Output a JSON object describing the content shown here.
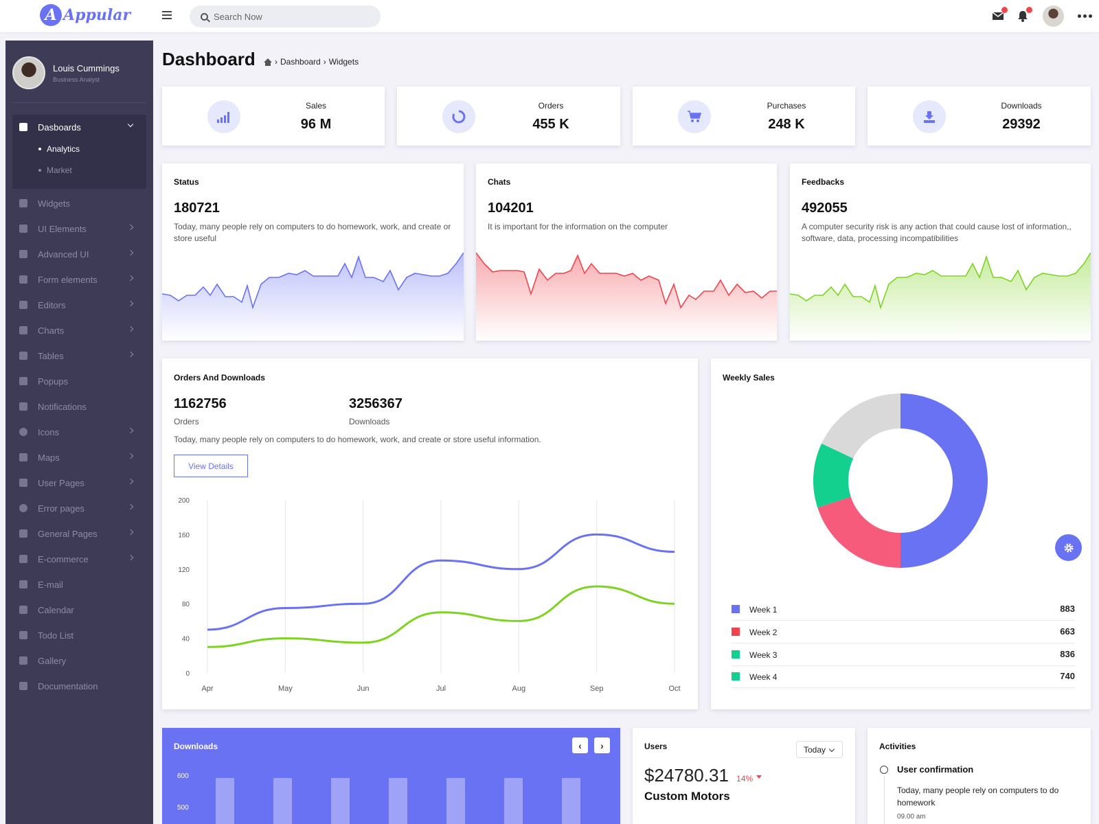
{
  "app": {
    "logo_letter": "A",
    "name": "Appular",
    "accent": "#6a72f4"
  },
  "search": {
    "placeholder": "Search Now"
  },
  "sidebar": {
    "user": {
      "name": "Louis Cummings",
      "role": "Business Analyst"
    },
    "dashboards": {
      "label": "Dasboards",
      "children": [
        "Analytics",
        "Market"
      ],
      "active_child": "Analytics"
    },
    "items": [
      "Widgets",
      "UI Elements",
      "Advanced UI",
      "Form elements",
      "Editors",
      "Charts",
      "Tables",
      "Popups",
      "Notifications",
      "Icons",
      "Maps",
      "User Pages",
      "Error pages",
      "General Pages",
      "E-commerce",
      "E-mail",
      "Calendar",
      "Todo List",
      "Gallery",
      "Documentation"
    ]
  },
  "page": {
    "title": "Dashboard",
    "breadcrumb": [
      "Dashboard",
      "Widgets"
    ]
  },
  "stats": [
    {
      "label": "Sales",
      "value": "96 M",
      "icon": "signal-bars-icon"
    },
    {
      "label": "Orders",
      "value": "455 K",
      "icon": "circle-notch-icon"
    },
    {
      "label": "Purchases",
      "value": "248 K",
      "icon": "cart-icon"
    },
    {
      "label": "Downloads",
      "value": "29392",
      "icon": "download-icon"
    }
  ],
  "sparks": [
    {
      "title": "Status",
      "value": "180721",
      "desc": "Today, many people rely on computers to do homework, work, and create or store useful",
      "color": "#6a72f4"
    },
    {
      "title": "Chats",
      "value": "104201",
      "desc": "It is important for the information on the computer",
      "color": "#f0444c"
    },
    {
      "title": "Feedbacks",
      "value": "492055",
      "desc": "A computer security risk is any action that could cause lost of information,, software, data, processing incompatibilities",
      "color": "#7ed321"
    }
  ],
  "orders_downloads": {
    "title": "Orders And Downloads",
    "orders_value": "1162756",
    "orders_label": "Orders",
    "downloads_value": "3256367",
    "downloads_label": "Downloads",
    "desc": "Today, many people rely on computers to do homework, work, and create or store useful information.",
    "button": "View Details"
  },
  "weekly_sales": {
    "title": "Weekly Sales",
    "legend": [
      {
        "label": "Week 1",
        "value": "883",
        "color": "#6a72f4"
      },
      {
        "label": "Week 2",
        "value": "663",
        "color": "#f75b7b"
      },
      {
        "label": "Week 3",
        "value": "836",
        "color": "#13d08f"
      },
      {
        "label": "Week 4",
        "value": "740",
        "color": "#13d08f"
      }
    ]
  },
  "downloads_card": {
    "title": "Downloads",
    "y_ticks": [
      "600",
      "500"
    ]
  },
  "users_card": {
    "title": "Users",
    "select": "Today",
    "amount": "$24780.31",
    "percent": "14%",
    "subtitle": "Custom Motors"
  },
  "activities": {
    "title": "Activities",
    "item_title": "User confirmation",
    "item_desc": "Today, many people rely on computers to do homework",
    "item_time": "09.00 am"
  },
  "chart_data": [
    {
      "type": "line",
      "categories": [
        "Apr",
        "May",
        "Jun",
        "Jul",
        "Aug",
        "Sep",
        "Oct"
      ],
      "series": [
        {
          "values": [
            50,
            75,
            80,
            130,
            120,
            160,
            140
          ],
          "color": "#6a72f4"
        },
        {
          "values": [
            30,
            40,
            35,
            70,
            60,
            100,
            80
          ],
          "color": "#7ed321"
        }
      ],
      "y_ticks": [
        "200",
        "160",
        "120",
        "80",
        "40",
        "0"
      ],
      "ylim": [
        0,
        200
      ],
      "grid": "vertical"
    },
    {
      "type": "pie",
      "donut": true,
      "values": [
        50,
        20,
        12,
        18
      ],
      "colors": [
        "#6a72f4",
        "#f75b7b",
        "#13d08f",
        "#d9d9d9"
      ]
    }
  ]
}
